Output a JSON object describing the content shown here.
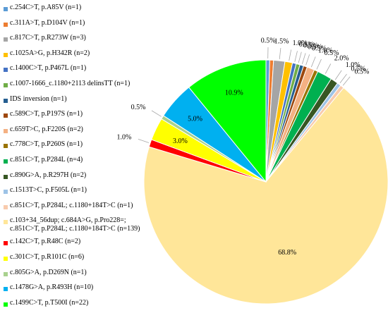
{
  "chart_data": {
    "type": "pie",
    "start_angle_deg": 0,
    "direction": "clockwise",
    "slices": [
      {
        "label": "c.254C>T, p.A85V (n=1)",
        "value": 0.5,
        "display": "0.5%",
        "color": "#5b9bd5"
      },
      {
        "label": "c.311A>T, p.D104V (n=1)",
        "value": 0.5,
        "display": "",
        "color": "#ed7d31"
      },
      {
        "label": "c.817C>T, p.R273W (n=3)",
        "value": 1.5,
        "display": "1.5%",
        "color": "#a5a5a5"
      },
      {
        "label": "c.1025A>G, p.H342R (n=2)",
        "value": 1.0,
        "display": "1.0%",
        "color": "#ffc000"
      },
      {
        "label": "c.1400C>T, p.P467L (n=1)",
        "value": 0.5,
        "display": "0.5%",
        "color": "#4472c4"
      },
      {
        "label": "c.1007-1666_c.1180+2113 delinsTT (n=1)",
        "value": 0.5,
        "display": "0.5%",
        "color": "#70ad47"
      },
      {
        "label": "IDS inversion (n=1)",
        "value": 0.5,
        "display": "0.5%",
        "color": "#255e91"
      },
      {
        "label": "c.589C>T, p.P197S (n=1)",
        "value": 0.5,
        "display": "0.5%",
        "color": "#9e480e"
      },
      {
        "label": "c.659T>C, p.F220S (n=2)",
        "value": 1.0,
        "display": "1.0%",
        "color": "#f4b183"
      },
      {
        "label": "c.778C>T, p.P260S (n=1)",
        "value": 0.5,
        "display": "0.5%",
        "color": "#997300"
      },
      {
        "label": "c.851C>T, p.P284L (n=4)",
        "value": 2.0,
        "display": "2.0%",
        "color": "#00b050"
      },
      {
        "label": "c.890G>A, p.R297H (n=2)",
        "value": 1.0,
        "display": "1.0%",
        "color": "#375623"
      },
      {
        "label": "c.1513T>C, p.F505L (n=1)",
        "value": 0.5,
        "display": "0.5%",
        "color": "#9dc3e6"
      },
      {
        "label": "c.851C>T, p.P284L; c.1180+184T>C (n=1)",
        "value": 0.5,
        "display": "0.5%",
        "color": "#f8cbad"
      },
      {
        "label": "c.103+34_56dup; c.684A>G, p.Pro228=;\nc.851C>T, p.P284L; c.1180+184T>C (n=139)",
        "value": 68.8,
        "display": "68.8%",
        "color": "#ffe699"
      },
      {
        "label": "c.142C>T, p.R48C (n=2)",
        "value": 1.0,
        "display": "1.0%",
        "color": "#ff0000"
      },
      {
        "label": "c.301C>T, p.R101C (n=6)",
        "value": 3.0,
        "display": "3.0%",
        "color": "#ffff00"
      },
      {
        "label": "c.805G>A, p.D269N (n=1)",
        "value": 0.5,
        "display": "0.5%",
        "color": "#a9d18e"
      },
      {
        "label": "c.1478G>A, p.R493H (n=10)",
        "value": 5.0,
        "display": "5.0%",
        "color": "#00b0f0"
      },
      {
        "label": "c.1499C>T, p.T500I (n=22)",
        "value": 10.9,
        "display": "10.9%",
        "color": "#00ff00"
      }
    ]
  }
}
